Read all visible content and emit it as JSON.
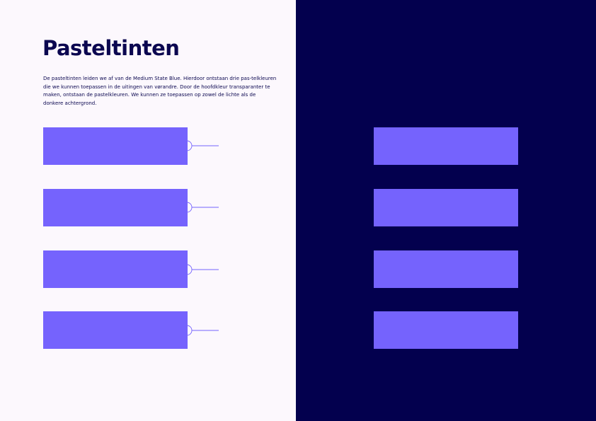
{
  "page": {
    "title": "Pasteltinten",
    "description": "De pasteltinten leiden we af van de Medium State Blue. Hierdoor ontstaan drie pas-telkleuren die we kunnen toepassen in de uitingen van vørandre. Door de hoofdkleur transparanter te maken, ontstaan de pastelkleuren. We kunnen ze toepassen op zowel de lichte als de donkere achtergrond."
  },
  "colors": {
    "light_background": "#FCF8FD",
    "dark_background": "#03004E",
    "swatch": "#7563FD",
    "connector_line": "#7563FD"
  },
  "swatches_light": [
    {
      "color": "#7563FD"
    },
    {
      "color": "#7563FD"
    },
    {
      "color": "#7563FD"
    },
    {
      "color": "#7563FD"
    }
  ],
  "swatches_dark": [
    {
      "color": "#7563FD"
    },
    {
      "color": "#7563FD"
    },
    {
      "color": "#7563FD"
    },
    {
      "color": "#7563FD"
    }
  ]
}
